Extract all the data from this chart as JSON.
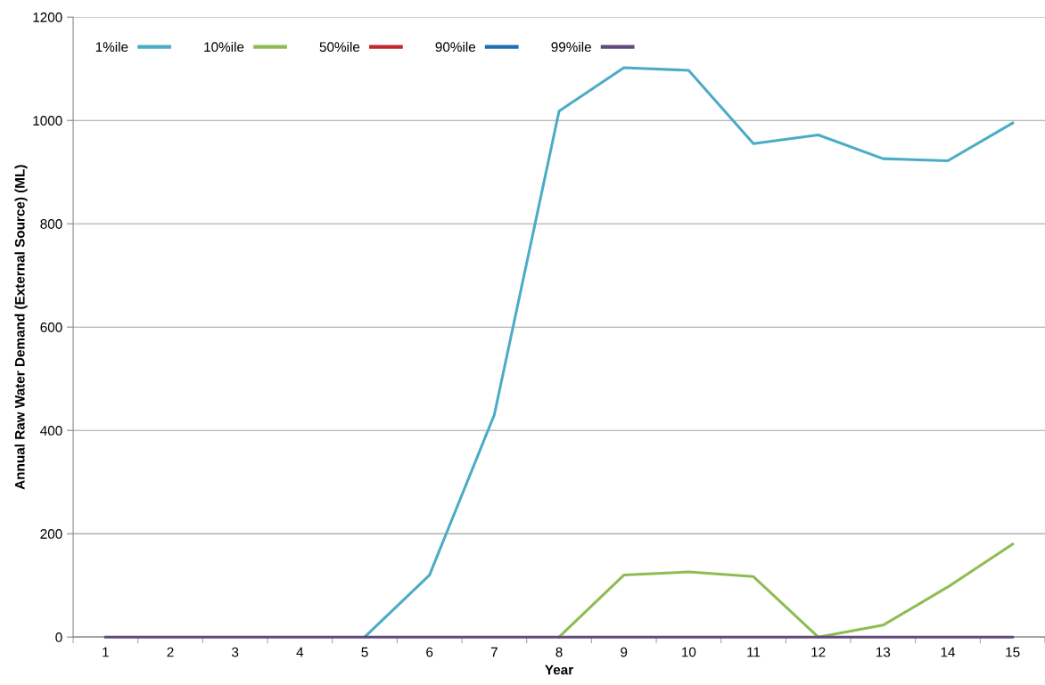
{
  "chart_data": {
    "type": "line",
    "xlabel": "Year",
    "ylabel": "Annual Raw Water Demand (External Source) (ML)",
    "categories": [
      "1",
      "2",
      "3",
      "4",
      "5",
      "6",
      "7",
      "8",
      "9",
      "10",
      "11",
      "12",
      "13",
      "14",
      "15"
    ],
    "series": [
      {
        "name": "1%ile",
        "color": "#4bacc6",
        "values": [
          null,
          null,
          null,
          null,
          0,
          120,
          430,
          1018,
          1102,
          1097,
          955,
          972,
          926,
          922,
          995
        ]
      },
      {
        "name": "10%ile",
        "color": "#8fbc52",
        "values": [
          null,
          null,
          null,
          null,
          null,
          null,
          null,
          0,
          120,
          126,
          117,
          0,
          23,
          97,
          180
        ]
      },
      {
        "name": "50%ile",
        "color": "#c0282d",
        "values": [
          null,
          null,
          null,
          null,
          null,
          null,
          null,
          null,
          null,
          null,
          null,
          null,
          null,
          null,
          null
        ]
      },
      {
        "name": "90%ile",
        "color": "#1f6eb5",
        "values": [
          null,
          null,
          null,
          null,
          null,
          null,
          null,
          null,
          null,
          null,
          null,
          null,
          null,
          null,
          null
        ]
      },
      {
        "name": "99%ile",
        "color": "#604a7b",
        "values": [
          0,
          0,
          0,
          0,
          0,
          0,
          0,
          0,
          0,
          0,
          0,
          0,
          0,
          0,
          0
        ]
      }
    ],
    "ylim": [
      0,
      1200
    ],
    "yticks": [
      0,
      200,
      400,
      600,
      800,
      1000,
      1200
    ],
    "grid": "y",
    "legend": "top left",
    "marker": "none",
    "line_style": "solid"
  }
}
